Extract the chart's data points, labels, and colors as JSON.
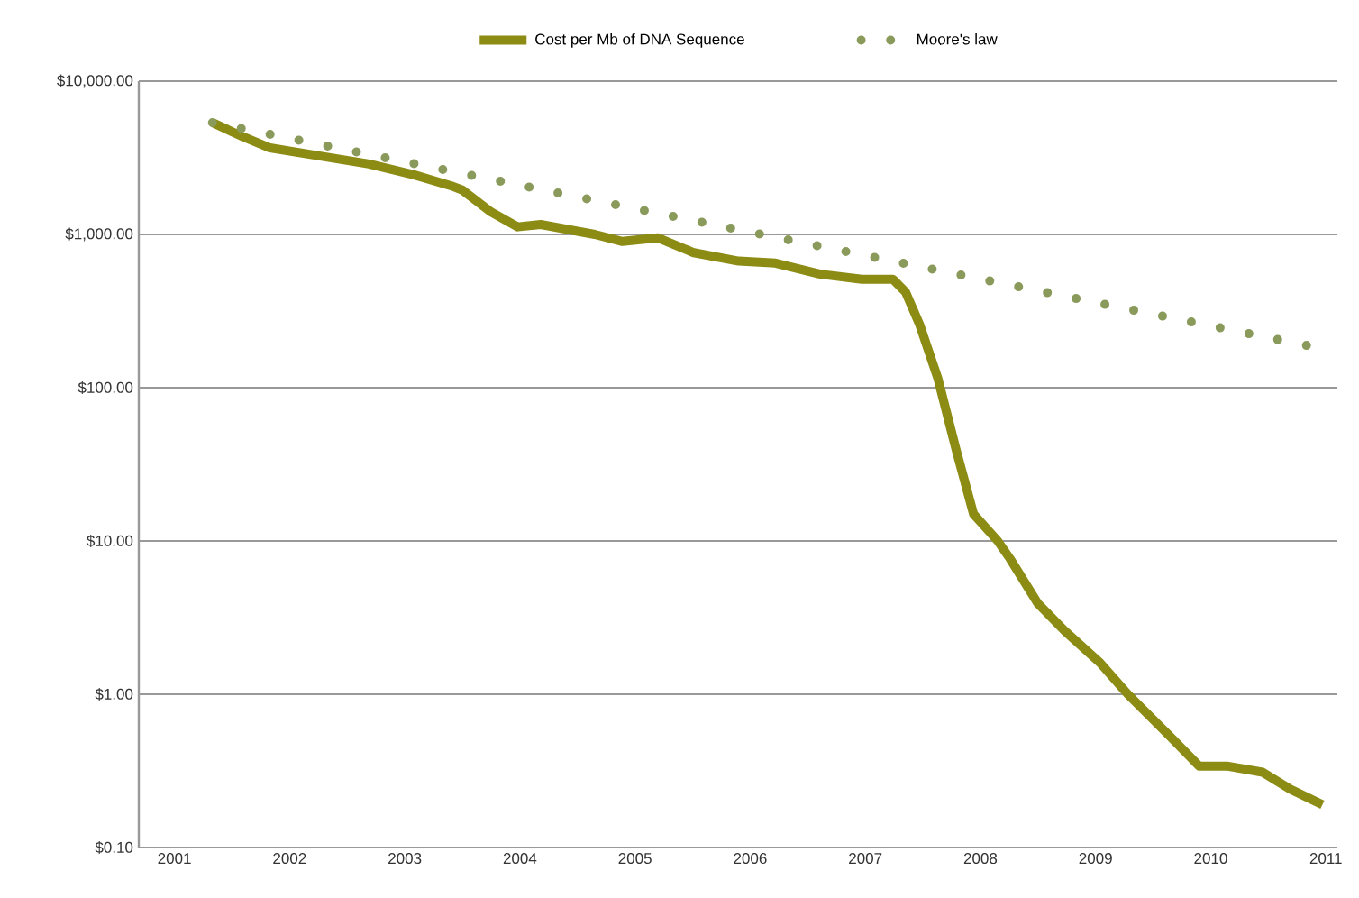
{
  "chart_data": {
    "type": "line",
    "log": "y",
    "grid": "y",
    "legend": "top",
    "marker": "none",
    "xlim": [
      2000.69,
      2011.1
    ],
    "xticks": [
      2001,
      2002,
      2003,
      2004,
      2005,
      2006,
      2007,
      2008,
      2009,
      2010,
      2011
    ],
    "ylim": [
      0.1,
      10000
    ],
    "yticks": [
      {
        "value": 0.1,
        "label": "$0.10"
      },
      {
        "value": 1,
        "label": "$1.00"
      },
      {
        "value": 10,
        "label": "$10.00"
      },
      {
        "value": 100,
        "label": "$100.00"
      },
      {
        "value": 1000,
        "label": "$1,000.00"
      },
      {
        "value": 10000,
        "label": "$10,000.00"
      }
    ],
    "series": [
      {
        "name": "Cost per Mb of DNA Sequence",
        "color": "#8c8c14",
        "line_style": "solid",
        "x": [
          2001.33,
          2001.6,
          2001.83,
          2002.22,
          2002.69,
          2003.08,
          2003.4,
          2003.5,
          2003.75,
          2003.98,
          2004.18,
          2004.65,
          2004.89,
          2005.2,
          2005.51,
          2005.9,
          2006.22,
          2006.61,
          2006.97,
          2007.24,
          2007.35,
          2007.47,
          2007.63,
          2007.79,
          2007.94,
          2008.15,
          2008.26,
          2008.5,
          2008.73,
          2009.04,
          2009.28,
          2009.67,
          2009.9,
          2010.14,
          2010.45,
          2010.69,
          2010.97
        ],
        "values": [
          5360,
          4320,
          3670,
          3290,
          2880,
          2450,
          2080,
          1950,
          1400,
          1120,
          1160,
          1000,
          900,
          950,
          760,
          670,
          650,
          550,
          510,
          510,
          420,
          260,
          115,
          39,
          15,
          10,
          7.6,
          3.9,
          2.6,
          1.6,
          1.0,
          0.51,
          0.34,
          0.34,
          0.31,
          0.24,
          0.19
        ]
      },
      {
        "name": "Moore's law",
        "color": "#8a9a5b",
        "line_style": "dotted",
        "x": [
          2001.33,
          2010.95
        ],
        "values": [
          5360,
          181
        ]
      }
    ]
  }
}
